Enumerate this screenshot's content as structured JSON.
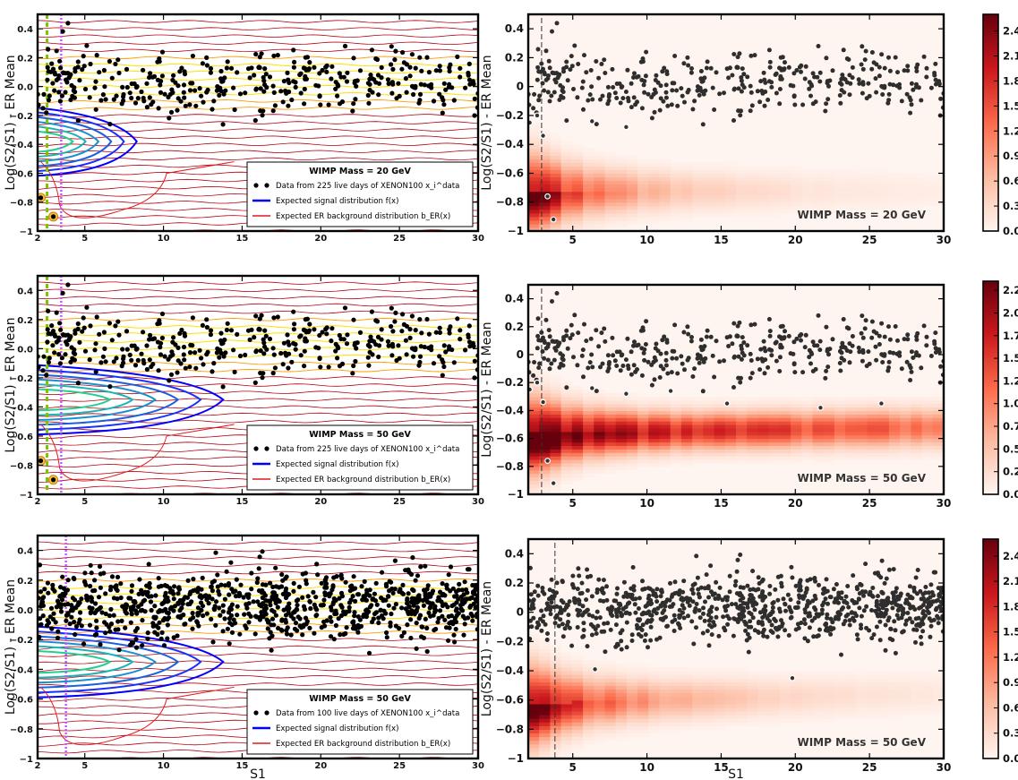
{
  "chart_data": [
    {
      "type": "scatter",
      "panel": "contours",
      "xlabel": "",
      "ylabel": "Log(S2/S1) - ER Mean",
      "xlim": [
        2,
        30
      ],
      "ylim": [
        -1.0,
        0.5
      ],
      "xticks": [
        2,
        5,
        10,
        15,
        20,
        25,
        30
      ],
      "yticks": [
        -1.0,
        -0.8,
        -0.6,
        -0.4,
        -0.2,
        0.0,
        0.2,
        0.4
      ],
      "legend": {
        "title": "WIMP Mass = 20 GeV",
        "entries": [
          "Data from 225 live days of XENON100 x_i^data",
          "Expected signal distribution f(x)",
          "Expected ER background distribution b_ER(x)"
        ],
        "placement": "lower right"
      },
      "green_threshold_x": 2.6,
      "magenta_threshold_x": 3.5,
      "signal_peak": {
        "x": 2.5,
        "y": -0.38,
        "x_extent": 8.3
      },
      "highlighted_points": [
        {
          "x": 3.0,
          "y": -0.9
        },
        {
          "x": 2.2,
          "y": -0.77
        }
      ],
      "n_points": 370,
      "seed": 11
    },
    {
      "type": "heatmap",
      "panel": "density",
      "xlabel": "",
      "ylabel": "Log(S2/S1) - ER Mean",
      "xlim": [
        2,
        30
      ],
      "ylim": [
        -1.0,
        0.5
      ],
      "xticks": [
        5,
        10,
        15,
        20,
        25,
        30
      ],
      "yticks": [
        -1.0,
        -0.8,
        -0.6,
        -0.4,
        -0.2,
        0.0,
        0.2,
        0.4
      ],
      "annotation": "WIMP Mass = 20 GeV",
      "colorbar": {
        "min": 0.0,
        "max": 2.6,
        "ticks": [
          "0.0",
          "0.3",
          "0.6",
          "0.9",
          "1.2",
          "1.5",
          "1.8",
          "2.1",
          "2.4"
        ]
      },
      "band": {
        "center_left": -0.72,
        "center_right": -0.72,
        "decay": 7
      },
      "dashed_x": 2.9,
      "white_points": [
        {
          "x": 2.1,
          "y": -0.25
        },
        {
          "x": 2.6,
          "y": -0.2
        },
        {
          "x": 3.0,
          "y": -0.34
        },
        {
          "x": 3.3,
          "y": -0.76
        },
        {
          "x": 3.7,
          "y": -0.92
        },
        {
          "x": 6.3,
          "y": -0.24
        },
        {
          "x": 8.6,
          "y": -0.28
        }
      ],
      "n_points": 370,
      "seed": 11
    },
    {
      "type": "scatter",
      "panel": "contours",
      "xlabel": "",
      "ylabel": "Log(S2/S1) - ER Mean",
      "xlim": [
        2,
        30
      ],
      "ylim": [
        -1.0,
        0.5
      ],
      "xticks": [
        2,
        5,
        10,
        15,
        20,
        25,
        30
      ],
      "yticks": [
        -1.0,
        -0.8,
        -0.6,
        -0.4,
        -0.2,
        0.0,
        0.2,
        0.4
      ],
      "legend": {
        "title": "WIMP Mass = 50 GeV",
        "entries": [
          "Data from 225 live days of XENON100 x_i^data",
          "Expected signal distribution f(x)",
          "Expected ER background distribution b_ER(x)"
        ],
        "placement": "lower right"
      },
      "green_threshold_x": 2.6,
      "magenta_threshold_x": 3.5,
      "signal_peak": {
        "x": 3.5,
        "y": -0.35,
        "x_extent": 13.8
      },
      "highlighted_points": [
        {
          "x": 3.0,
          "y": -0.9
        },
        {
          "x": 2.2,
          "y": -0.77
        }
      ],
      "n_points": 370,
      "seed": 11
    },
    {
      "type": "heatmap",
      "panel": "density",
      "xlabel": "",
      "ylabel": "Log(S2/S1) - ER Mean",
      "xlim": [
        2,
        30
      ],
      "ylim": [
        -1.0,
        0.5
      ],
      "xticks": [
        5,
        10,
        15,
        20,
        25,
        30
      ],
      "yticks": [
        -1.0,
        -0.8,
        -0.6,
        -0.4,
        -0.2,
        0.0,
        0.2,
        0.4
      ],
      "annotation": "WIMP Mass = 50 GeV",
      "colorbar": {
        "min": 0.0,
        "max": 2.35,
        "ticks": [
          "0.00",
          "0.25",
          "0.50",
          "0.75",
          "1.00",
          "1.25",
          "1.50",
          "1.75",
          "2.00",
          "2.25"
        ]
      },
      "band": {
        "center_left": -0.56,
        "center_right": -0.52,
        "decay": 40
      },
      "dashed_x": 2.9,
      "white_points": [
        {
          "x": 2.1,
          "y": -0.25
        },
        {
          "x": 2.6,
          "y": -0.2
        },
        {
          "x": 3.0,
          "y": -0.34
        },
        {
          "x": 3.3,
          "y": -0.76
        },
        {
          "x": 3.7,
          "y": -0.92
        },
        {
          "x": 6.3,
          "y": -0.24
        },
        {
          "x": 8.6,
          "y": -0.28
        },
        {
          "x": 11.6,
          "y": -0.26
        },
        {
          "x": 15.4,
          "y": -0.35
        },
        {
          "x": 21.7,
          "y": -0.38
        },
        {
          "x": 25.8,
          "y": -0.35
        }
      ],
      "n_points": 370,
      "seed": 11
    },
    {
      "type": "scatter",
      "panel": "contours",
      "xlabel": "S1",
      "ylabel": "Log(S2/S1) - ER Mean",
      "xlim": [
        2,
        30
      ],
      "ylim": [
        -1.0,
        0.5
      ],
      "xticks": [
        2,
        5,
        10,
        15,
        20,
        25,
        30
      ],
      "yticks": [
        -1.0,
        -0.8,
        -0.6,
        -0.4,
        -0.2,
        0.0,
        0.2,
        0.4
      ],
      "legend": {
        "title": "WIMP Mass = 50 GeV",
        "entries": [
          "Data from 100 live days of XENON100 x_i^data",
          "Expected signal distribution f(x)",
          "Expected ER background distribution b_ER(x)"
        ],
        "placement": "lower right"
      },
      "green_threshold_x": null,
      "magenta_threshold_x": 3.8,
      "signal_peak": {
        "x": 3.5,
        "y": -0.35,
        "x_extent": 13.8
      },
      "highlighted_points": [],
      "n_points": 900,
      "seed": 77
    },
    {
      "type": "heatmap",
      "panel": "density",
      "xlabel": "S1",
      "ylabel": "Log(S2/S1) - ER Mean",
      "xlim": [
        2,
        30
      ],
      "ylim": [
        -1.0,
        0.5
      ],
      "xticks": [
        5,
        10,
        15,
        20,
        25,
        30
      ],
      "yticks": [
        -1.0,
        -0.8,
        -0.6,
        -0.4,
        -0.2,
        0.0,
        0.2,
        0.4
      ],
      "annotation": "WIMP Mass = 50 GeV",
      "colorbar": {
        "min": 0.0,
        "max": 2.6,
        "ticks": [
          "0.0",
          "0.3",
          "0.6",
          "0.9",
          "1.2",
          "1.5",
          "1.8",
          "2.1",
          "2.4"
        ]
      },
      "band": {
        "center_left": -0.62,
        "center_right": -0.55,
        "decay": 9
      },
      "dashed_x": 3.8,
      "white_points": [
        {
          "x": 6.5,
          "y": -0.39
        },
        {
          "x": 19.8,
          "y": -0.45
        }
      ],
      "n_points": 900,
      "seed": 77
    }
  ]
}
